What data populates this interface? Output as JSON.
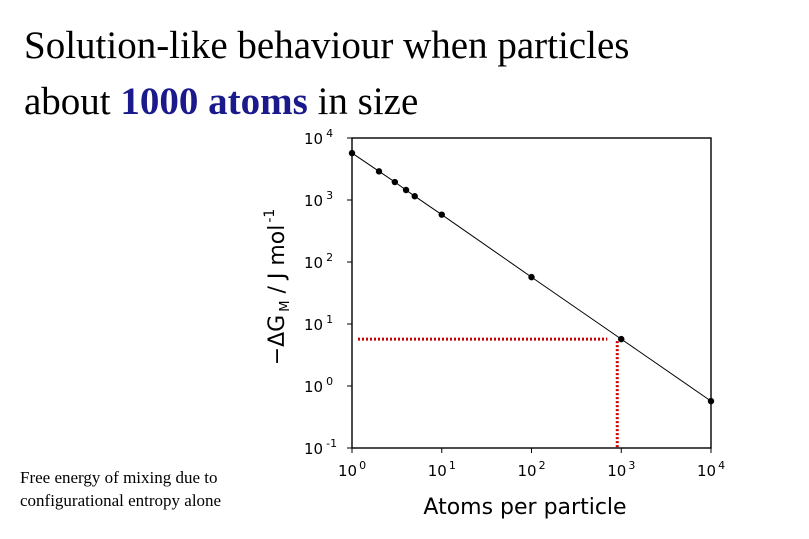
{
  "slide": {
    "title_line1": "Solution-like behaviour when particles",
    "title_line2_pre": "about ",
    "title_line2_highlight": "1000 atoms",
    "title_line2_post": " in size",
    "caption_line1": "Free energy of mixing due to",
    "caption_line2": "configurational  entropy alone"
  },
  "colors": {
    "highlight": "#1a1a8c",
    "guide": "#cc0000",
    "line": "#000000"
  },
  "chart_data": {
    "type": "scatter",
    "xscale": "log",
    "yscale": "log",
    "xlim": [
      1,
      10000
    ],
    "ylim": [
      0.1,
      10000
    ],
    "xlabel": "Atoms per particle",
    "ylabel": {
      "prefix": "−ΔG",
      "subscript": "M",
      "unit": " / J mol",
      "exponent": "-1"
    },
    "x_ticks": [
      {
        "value": 1,
        "base": "10",
        "exp": "0"
      },
      {
        "value": 10,
        "base": "10",
        "exp": "1"
      },
      {
        "value": 100,
        "base": "10",
        "exp": "2"
      },
      {
        "value": 1000,
        "base": "10",
        "exp": "3"
      },
      {
        "value": 10000,
        "base": "10",
        "exp": "4"
      }
    ],
    "y_ticks": [
      {
        "value": 0.1,
        "base": "10",
        "exp": "-1"
      },
      {
        "value": 1,
        "base": "10",
        "exp": "0"
      },
      {
        "value": 10,
        "base": "10",
        "exp": "1"
      },
      {
        "value": 100,
        "base": "10",
        "exp": "2"
      },
      {
        "value": 1000,
        "base": "10",
        "exp": "3"
      },
      {
        "value": 10000,
        "base": "10",
        "exp": "4"
      }
    ],
    "series": [
      {
        "x": [
          1,
          2,
          3,
          4,
          5,
          10,
          100,
          1000,
          10000
        ],
        "y": [
          5700,
          2900,
          1950,
          1450,
          1150,
          580,
          57,
          5.7,
          0.57
        ]
      }
    ],
    "guide": {
      "x": 1000,
      "y": 5.7
    },
    "grid": false
  }
}
